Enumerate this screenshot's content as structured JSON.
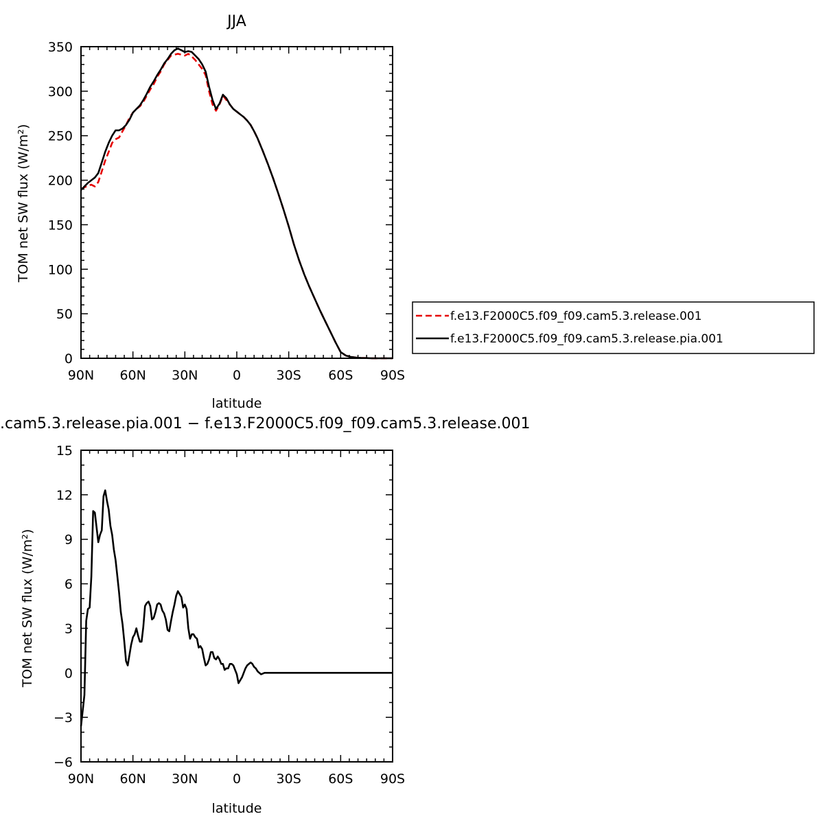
{
  "chart_data": [
    {
      "type": "line",
      "title": "JJA",
      "xlabel": "latitude",
      "ylabel": "TOM net SW flux (W/m²)",
      "xlim": [
        90,
        -90
      ],
      "ylim": [
        0,
        350
      ],
      "xticks": [
        90,
        60,
        30,
        0,
        -30,
        -60,
        -90
      ],
      "xtick_labels": [
        "90N",
        "60N",
        "30N",
        "0",
        "30S",
        "60S",
        "90S"
      ],
      "yticks": [
        0,
        50,
        100,
        150,
        200,
        250,
        300,
        350
      ],
      "ytick_labels": [
        "0",
        "50",
        "100",
        "150",
        "200",
        "250",
        "300",
        "350"
      ],
      "legend_position": "right",
      "series": [
        {
          "name": "f.e13.F2000C5.f09_f09.cam5.3.release.001",
          "color": "#e60000",
          "dash": "dashed",
          "x": [
            90,
            88,
            86,
            84,
            82,
            80,
            78,
            76,
            74,
            72,
            70,
            68,
            66,
            64,
            62,
            60,
            58,
            56,
            54,
            52,
            50,
            48,
            46,
            44,
            42,
            40,
            38,
            36,
            34,
            32,
            30,
            28,
            26,
            24,
            22,
            20,
            18,
            16,
            14,
            12,
            10,
            8,
            6,
            4,
            2,
            0,
            -2,
            -4,
            -6,
            -8,
            -10,
            -12,
            -15,
            -18,
            -21,
            -24,
            -27,
            -30,
            -33,
            -36,
            -39,
            -42,
            -45,
            -48,
            -51,
            -54,
            -57,
            -60,
            -63,
            -66,
            -69,
            -72,
            -75,
            -78,
            -81,
            -84,
            -87,
            -90
          ],
          "y": [
            190,
            192,
            194,
            195,
            193,
            198,
            210,
            222,
            232,
            242,
            246,
            248,
            255,
            262,
            270,
            276,
            280,
            283,
            288,
            295,
            302,
            308,
            316,
            322,
            330,
            335,
            340,
            341,
            342,
            341,
            340,
            342,
            339,
            335,
            330,
            325,
            318,
            300,
            285,
            278,
            285,
            295,
            290,
            285,
            280,
            277,
            274,
            271,
            267,
            262,
            255,
            247,
            233,
            218,
            202,
            185,
            167,
            148,
            128,
            110,
            94,
            80,
            67,
            54,
            42,
            30,
            18,
            7,
            3,
            1.5,
            0.8,
            0.4,
            0.2,
            0,
            0,
            0,
            0,
            0
          ]
        },
        {
          "name": "f.e13.F2000C5.f09_f09.cam5.3.release.pia.001",
          "color": "#000000",
          "dash": "solid",
          "x": [
            90,
            88,
            86,
            84,
            82,
            80,
            78,
            76,
            74,
            72,
            70,
            68,
            66,
            64,
            62,
            60,
            58,
            56,
            54,
            52,
            50,
            48,
            46,
            44,
            42,
            40,
            38,
            36,
            34,
            32,
            30,
            28,
            26,
            24,
            22,
            20,
            18,
            16,
            14,
            12,
            10,
            8,
            6,
            4,
            2,
            0,
            -2,
            -4,
            -6,
            -8,
            -10,
            -12,
            -15,
            -18,
            -21,
            -24,
            -27,
            -30,
            -33,
            -36,
            -39,
            -42,
            -45,
            -48,
            -51,
            -54,
            -57,
            -60,
            -63,
            -66,
            -69,
            -72,
            -75,
            -78,
            -81,
            -84,
            -87,
            -90
          ],
          "y": [
            189,
            193,
            197,
            200,
            203,
            208,
            220,
            232,
            242,
            250,
            256,
            256,
            258,
            262,
            268,
            276,
            280,
            284,
            290,
            297,
            305,
            311,
            318,
            324,
            331,
            336,
            342,
            346,
            348,
            346,
            344,
            345,
            344,
            340,
            336,
            330,
            322,
            305,
            290,
            280,
            286,
            296,
            292,
            285,
            280,
            277,
            274,
            271,
            267,
            262,
            255,
            247,
            233,
            218,
            202,
            185,
            167,
            148,
            128,
            110,
            94,
            80,
            67,
            54,
            42,
            30,
            18,
            7,
            3,
            1.5,
            0.8,
            0.4,
            0.2,
            0,
            0,
            0,
            0,
            0
          ]
        }
      ]
    },
    {
      "type": "line",
      "title": ".cam5.3.release.pia.001 − f.e13.F2000C5.f09_f09.cam5.3.release.001",
      "xlabel": "latitude",
      "ylabel": "TOM net SW flux (W/m²)",
      "xlim": [
        90,
        -90
      ],
      "ylim": [
        -6,
        15
      ],
      "xticks": [
        90,
        60,
        30,
        0,
        -30,
        -60,
        -90
      ],
      "xtick_labels": [
        "90N",
        "60N",
        "30N",
        "0",
        "30S",
        "60S",
        "90S"
      ],
      "yticks": [
        -6,
        -3,
        0,
        3,
        6,
        9,
        12,
        15
      ],
      "ytick_labels": [
        "−6",
        "−3",
        "0",
        "3",
        "6",
        "9",
        "12",
        "15"
      ],
      "series": [
        {
          "color": "#000000",
          "dash": "solid",
          "x": [
            90,
            88,
            87,
            86,
            85,
            84,
            83,
            82,
            81,
            80,
            79,
            78,
            77,
            76,
            75,
            74,
            73,
            72,
            71,
            70,
            69,
            68,
            67,
            66,
            65,
            64,
            63,
            62,
            61,
            60,
            59,
            58,
            57,
            56,
            55,
            54,
            53,
            52,
            51,
            50,
            49,
            48,
            47,
            46,
            45,
            44,
            43,
            42,
            41,
            40,
            39,
            38,
            37,
            36,
            35,
            34,
            33,
            32,
            31,
            30,
            29,
            28,
            27,
            26,
            25,
            24,
            23,
            22,
            21,
            20,
            19,
            18,
            17,
            16,
            15,
            14,
            13,
            12,
            11,
            10,
            9,
            8,
            7,
            6,
            5,
            4,
            3,
            2,
            1,
            0,
            -1,
            -2,
            -3,
            -4,
            -5,
            -6,
            -7,
            -8,
            -9,
            -10,
            -11,
            -12,
            -13,
            -14,
            -15,
            -16,
            -17,
            -18,
            -19,
            -20,
            -21,
            -22,
            -23,
            -24,
            -25,
            -26,
            -27,
            -28,
            -29,
            -30,
            -31,
            -32,
            -33,
            -34,
            -35,
            -36,
            -37,
            -38,
            -39,
            -40,
            -41,
            -42,
            -43,
            -44,
            -45,
            -46,
            -47,
            -48,
            -49,
            -50,
            -52,
            -54,
            -56,
            -58,
            -60,
            -62,
            -64,
            -66,
            -70,
            -75,
            -80,
            -85,
            -90
          ],
          "y": [
            -3.6,
            -1.5,
            3.5,
            4.3,
            4.4,
            6.5,
            10.9,
            10.8,
            9.8,
            8.8,
            9.3,
            9.6,
            11.9,
            12.3,
            11.6,
            11.0,
            9.9,
            9.3,
            8.3,
            7.6,
            6.5,
            5.4,
            4.1,
            3.3,
            2.1,
            0.8,
            0.5,
            1.2,
            1.9,
            2.4,
            2.6,
            3.0,
            2.5,
            2.1,
            2.1,
            3.1,
            4.5,
            4.7,
            4.8,
            4.5,
            3.6,
            3.7,
            4.1,
            4.6,
            4.7,
            4.6,
            4.2,
            4.0,
            3.6,
            2.9,
            2.8,
            3.5,
            4.1,
            4.6,
            5.2,
            5.5,
            5.3,
            5.1,
            4.4,
            4.6,
            4.3,
            3.0,
            2.3,
            2.6,
            2.6,
            2.4,
            2.3,
            1.7,
            1.8,
            1.6,
            1.0,
            0.5,
            0.6,
            0.9,
            1.4,
            1.4,
            1.0,
            0.9,
            1.1,
            0.9,
            0.6,
            0.6,
            0.2,
            0.3,
            0.3,
            0.6,
            0.6,
            0.5,
            0.2,
            -0.1,
            -0.7,
            -0.5,
            -0.3,
            0.0,
            0.3,
            0.5,
            0.6,
            0.7,
            0.6,
            0.4,
            0.3,
            0.1,
            0.0,
            -0.1,
            -0.05,
            0.0,
            0.0,
            0.0,
            0.0,
            0.0,
            0.0,
            0.0,
            0.0,
            0.0,
            0.0,
            0.0,
            0.0,
            0.0,
            0.0,
            0.0,
            0.0,
            0.0,
            0.0,
            0.0,
            0.0,
            0.0,
            0.0,
            0.0,
            0.0,
            0.0,
            0.0,
            0.0,
            0.0,
            0.0,
            0.0,
            0.0,
            0.0,
            0.0,
            0.0,
            0.0,
            0.0,
            0.0,
            0.0,
            0.0,
            0.0,
            0.0,
            0.0,
            0.0,
            0.0,
            0.0,
            0.0,
            0.0,
            0.0
          ]
        }
      ]
    }
  ]
}
